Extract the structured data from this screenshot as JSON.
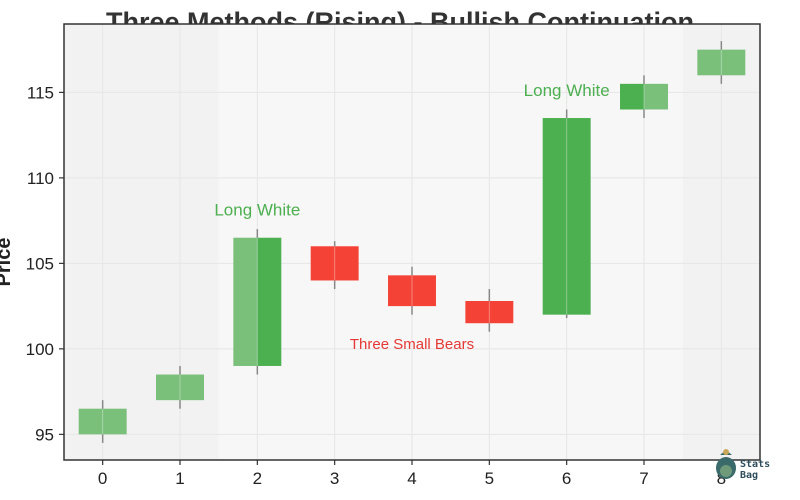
{
  "chart_data": {
    "type": "candlestick",
    "title": "Three Methods (Rising) - Bullish Continuation",
    "xlabel": "",
    "ylabel": "Price",
    "xlim": [
      -0.5,
      8.5
    ],
    "ylim": [
      93.5,
      119
    ],
    "x_ticks": [
      "0",
      "1",
      "2",
      "3",
      "4",
      "5",
      "6",
      "7",
      "8"
    ],
    "y_ticks": [
      95,
      100,
      105,
      110,
      115
    ],
    "grid": true,
    "colors": {
      "up": "#7abf7a",
      "up_strong": "#4caf50",
      "down": "#f44336",
      "wick": "#888888",
      "highlight_region": "#f2f2f2",
      "plot_bg": "#f7f7f7",
      "long_white_label": "#4caf50",
      "bears_label": "#e53935"
    },
    "candles": [
      {
        "x": 0,
        "open": 95.0,
        "high": 97.0,
        "low": 94.5,
        "close": 96.5,
        "color": "up"
      },
      {
        "x": 1,
        "open": 97.0,
        "high": 99.0,
        "low": 96.5,
        "close": 98.5,
        "color": "up"
      },
      {
        "x": 2,
        "open": 99.0,
        "high": 107.0,
        "low": 98.5,
        "close": 106.5,
        "color": "up_split"
      },
      {
        "x": 3,
        "open": 106.0,
        "high": 106.3,
        "low": 103.5,
        "close": 104.0,
        "color": "down"
      },
      {
        "x": 4,
        "open": 104.3,
        "high": 104.8,
        "low": 102.0,
        "close": 102.5,
        "color": "down"
      },
      {
        "x": 5,
        "open": 102.8,
        "high": 103.5,
        "low": 101.0,
        "close": 101.5,
        "color": "down"
      },
      {
        "x": 6,
        "open": 102.0,
        "high": 114.0,
        "low": 101.8,
        "close": 113.5,
        "color": "up_strong"
      },
      {
        "x": 7,
        "open": 114.0,
        "high": 116.0,
        "low": 113.5,
        "close": 115.5,
        "color": "up_split_rev"
      },
      {
        "x": 8,
        "open": 116.0,
        "high": 118.0,
        "low": 115.5,
        "close": 117.5,
        "color": "up"
      }
    ],
    "highlight_ranges": [
      [
        -0.5,
        1.5
      ],
      [
        7.5,
        8.5
      ]
    ],
    "annotations": [
      {
        "text": "Long White",
        "x": 2.0,
        "y": 107.8,
        "color": "long_white_label"
      },
      {
        "text": "Three Small Bears",
        "x": 4.0,
        "y": 100.0,
        "color": "bears_label"
      },
      {
        "text": "Long White",
        "x": 6.0,
        "y": 114.8,
        "color": "long_white_label"
      }
    ]
  },
  "watermark": {
    "line1": "Stats",
    "line2": "Bag"
  }
}
